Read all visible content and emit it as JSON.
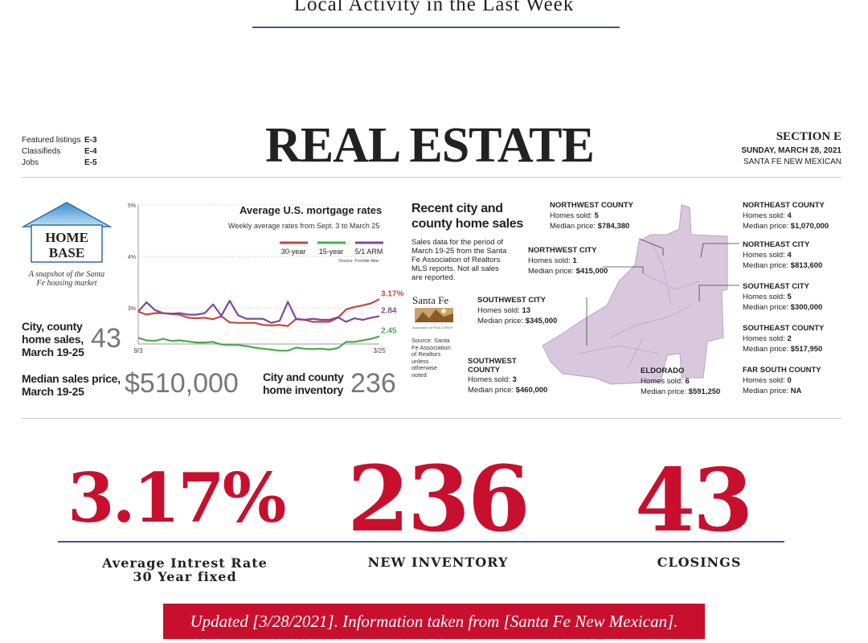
{
  "page": {
    "title": "Local Activity in the Last Week"
  },
  "newspaper": {
    "featured": [
      {
        "label": "Featured listings",
        "page": "E-3"
      },
      {
        "label": "Classifieds",
        "page": "E-4"
      },
      {
        "label": "Jobs",
        "page": "E-5"
      }
    ],
    "masthead": "REAL ESTATE",
    "section": "SECTION E",
    "date": "SUNDAY, MARCH 28, 2021",
    "publication": "SANTA FE NEW MEXICAN",
    "home_base": {
      "line1": "HOME",
      "line2": "BASE",
      "tagline": "A snapshot of the Santa Fe housing market"
    },
    "stats": {
      "city_sales_label": "City, county home sales, March 19-25",
      "city_sales_value": "43",
      "median_label": "Median sales price, March 19-25",
      "median_value": "$510,000",
      "inventory_label": "City and county home inventory",
      "inventory_value": "236"
    },
    "recent": {
      "title": "Recent city and county home sales",
      "description": "Sales data for the period of March 19-25 from the Santa Fe Association of Realtors MLS reports. Not all sales are reported.",
      "logo_line1": "Santa Fe",
      "logo_line2": "Association of REALTORS®",
      "source": "Source: Santa Fe Association of Realtors unless otherwise noted",
      "sold_label": "Homes sold:",
      "price_label": "Median price:",
      "areas": [
        {
          "name": "NORTHWEST COUNTY",
          "sold": "5",
          "price": "$784,380"
        },
        {
          "name": "NORTHWEST CITY",
          "sold": "1",
          "price": "$415,000"
        },
        {
          "name": "SOUTHWEST CITY",
          "sold": "13",
          "price": "$345,000"
        },
        {
          "name": "SOUTHWEST COUNTY",
          "sold": "3",
          "price": "$460,000"
        },
        {
          "name": "ELDORADO",
          "sold": "6",
          "price": "$591,250"
        },
        {
          "name": "NORTHEAST COUNTY",
          "sold": "4",
          "price": "$1,070,000"
        },
        {
          "name": "NORTHEAST CITY",
          "sold": "4",
          "price": "$813,600"
        },
        {
          "name": "SOUTHEAST CITY",
          "sold": "5",
          "price": "$300,000"
        },
        {
          "name": "SOUTHEAST COUNTY",
          "sold": "2",
          "price": "$517,950"
        },
        {
          "name": "FAR SOUTH COUNTY",
          "sold": "0",
          "price": "NA"
        }
      ]
    }
  },
  "chart_data": {
    "type": "line",
    "title": "Average U.S. mortgage rates",
    "subtitle": "Weekly average rates from Sept. 3 to March 25",
    "source": "Source: Freddie Mac",
    "x": [
      "9/3",
      "9/10",
      "9/17",
      "9/24",
      "10/1",
      "10/8",
      "10/15",
      "10/22",
      "10/29",
      "11/5",
      "11/12",
      "11/19",
      "11/25",
      "12/3",
      "12/10",
      "12/17",
      "12/23",
      "12/30",
      "1/7",
      "1/14",
      "1/21",
      "1/28",
      "2/4",
      "2/11",
      "2/18",
      "2/25",
      "3/4",
      "3/11",
      "3/18",
      "3/25"
    ],
    "x_tick_labels": [
      "9/3",
      "3/25"
    ],
    "y_ticks": [
      3,
      4,
      5
    ],
    "y_tick_labels": [
      "3%",
      "4%",
      "5%"
    ],
    "ylim": [
      2.3,
      5.0
    ],
    "grid": true,
    "legend_position": "top",
    "series": [
      {
        "name": "30-year",
        "color": "#c0483f",
        "end_label": "3.17%",
        "values": [
          2.93,
          2.87,
          2.9,
          2.9,
          2.88,
          2.87,
          2.81,
          2.8,
          2.81,
          2.78,
          2.84,
          2.72,
          2.71,
          2.71,
          2.71,
          2.67,
          2.66,
          2.67,
          2.65,
          2.79,
          2.77,
          2.73,
          2.73,
          2.73,
          2.81,
          2.97,
          3.02,
          3.05,
          3.09,
          3.17
        ]
      },
      {
        "name": "15-year",
        "color": "#4aaa4f",
        "end_label": "2.45",
        "values": [
          2.42,
          2.37,
          2.36,
          2.4,
          2.36,
          2.37,
          2.35,
          2.33,
          2.33,
          2.34,
          2.29,
          2.28,
          2.28,
          2.26,
          2.23,
          2.21,
          2.19,
          2.17,
          2.17,
          2.23,
          2.21,
          2.2,
          2.21,
          2.19,
          2.22,
          2.34,
          2.34,
          2.37,
          2.4,
          2.45
        ]
      },
      {
        "name": "5/1 ARM",
        "color": "#7b4a9b",
        "end_label": "2.84",
        "values": [
          2.93,
          3.11,
          2.96,
          2.9,
          2.89,
          2.9,
          2.87,
          2.87,
          2.9,
          3.07,
          2.85,
          3.14,
          2.86,
          2.79,
          2.79,
          2.79,
          2.71,
          2.75,
          3.12,
          2.78,
          2.77,
          2.79,
          2.77,
          2.77,
          2.82,
          2.73,
          2.8,
          2.77,
          2.81,
          2.84
        ]
      }
    ]
  },
  "big_stats": {
    "rate_value": "3.17%",
    "rate_caption": "Average Intrest Rate 30 Year fixed",
    "inventory_value": "236",
    "inventory_caption": "NEW INVENTORY",
    "closings_value": "43",
    "closings_caption": "CLOSINGS"
  },
  "footer": {
    "updated": "Updated [3/28/2021]. Information taken from [Santa Fe New Mexican]."
  },
  "colors": {
    "accent_red": "#c8102e",
    "rule_blue": "#3b5a86",
    "map_fill": "#d9c7de"
  }
}
